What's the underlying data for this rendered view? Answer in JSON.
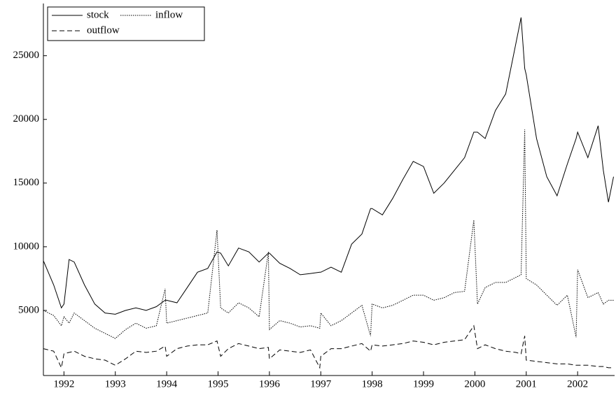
{
  "chart_data": {
    "type": "line",
    "x": [
      1991.6,
      1991.8,
      1991.95,
      1992.0,
      1992.1,
      1992.2,
      1992.4,
      1992.6,
      1992.8,
      1993.0,
      1993.2,
      1993.4,
      1993.6,
      1993.8,
      1993.97,
      1994.0,
      1994.2,
      1994.4,
      1994.6,
      1994.8,
      1994.98,
      1995.05,
      1995.2,
      1995.4,
      1995.6,
      1995.8,
      1995.98,
      1996.0,
      1996.2,
      1996.4,
      1996.6,
      1996.8,
      1996.98,
      1997.0,
      1997.2,
      1997.4,
      1997.6,
      1997.8,
      1997.97,
      1998.0,
      1998.2,
      1998.4,
      1998.6,
      1998.8,
      1999.0,
      1999.2,
      1999.4,
      1999.6,
      1999.8,
      1999.98,
      2000.05,
      2000.2,
      2000.4,
      2000.6,
      2000.8,
      2000.9,
      2000.97,
      2001.0,
      2001.2,
      2001.4,
      2001.6,
      2001.8,
      2001.97,
      2002.0,
      2002.2,
      2002.4,
      2002.5,
      2002.6,
      2002.7
    ],
    "series": [
      {
        "name": "stock",
        "color": "#000000",
        "style": "solid",
        "values": [
          8900,
          7000,
          5200,
          5500,
          9000,
          8800,
          7000,
          5500,
          4800,
          4700,
          5000,
          5200,
          5000,
          5300,
          5800,
          5800,
          5600,
          6800,
          8000,
          8300,
          9600,
          9500,
          8500,
          9900,
          9600,
          8800,
          9500,
          9500,
          8700,
          8300,
          7800,
          7900,
          8000,
          8000,
          8400,
          8000,
          10200,
          11000,
          13000,
          13000,
          12500,
          13800,
          15300,
          16700,
          16300,
          14200,
          15000,
          16000,
          17000,
          19000,
          19000,
          18500,
          20700,
          22000,
          26000,
          28000,
          24000,
          23500,
          18500,
          15500,
          14000,
          16500,
          18500,
          19000,
          17000,
          19500,
          16000,
          13500,
          15500
        ]
      },
      {
        "name": "inflow",
        "color": "#000000",
        "style": "dotted",
        "values": [
          5000,
          4600,
          3800,
          4500,
          4000,
          4800,
          4200,
          3600,
          3200,
          2800,
          3500,
          4000,
          3600,
          3800,
          6700,
          4000,
          4200,
          4400,
          4600,
          4800,
          11300,
          5200,
          4800,
          5600,
          5200,
          4500,
          9600,
          3500,
          4200,
          4000,
          3700,
          3800,
          3600,
          4800,
          3800,
          4200,
          4800,
          5400,
          3000,
          5500,
          5200,
          5400,
          5800,
          6200,
          6200,
          5800,
          6000,
          6400,
          6500,
          12100,
          5500,
          6800,
          7200,
          7200,
          7600,
          7800,
          19200,
          7500,
          7000,
          6200,
          5400,
          6200,
          2900,
          8200,
          6000,
          6400,
          5500,
          5800,
          5800
        ]
      },
      {
        "name": "outflow",
        "color": "#000000",
        "style": "dashed",
        "values": [
          2000,
          1800,
          500,
          1600,
          1700,
          1800,
          1400,
          1200,
          1100,
          700,
          1200,
          1800,
          1700,
          1800,
          2200,
          1400,
          2000,
          2200,
          2300,
          2300,
          2600,
          1400,
          2000,
          2400,
          2200,
          2000,
          2100,
          1200,
          1900,
          1800,
          1700,
          1900,
          500,
          1400,
          2000,
          2000,
          2200,
          2400,
          1800,
          2300,
          2200,
          2300,
          2400,
          2600,
          2500,
          2300,
          2500,
          2600,
          2700,
          3800,
          2000,
          2300,
          2000,
          1800,
          1700,
          1600,
          3000,
          1100,
          1000,
          900,
          800,
          800,
          700,
          700,
          700,
          600,
          600,
          500,
          500
        ]
      }
    ],
    "xlim": [
      1991.6,
      2002.72
    ],
    "xticks": [
      1992,
      1993,
      1994,
      1995,
      1996,
      1997,
      1998,
      1999,
      2000,
      2001,
      2002
    ],
    "ylim": [
      0,
      29100
    ],
    "yticks": [
      5000,
      10000,
      15000,
      20000,
      25000
    ],
    "legend": "top-left"
  }
}
